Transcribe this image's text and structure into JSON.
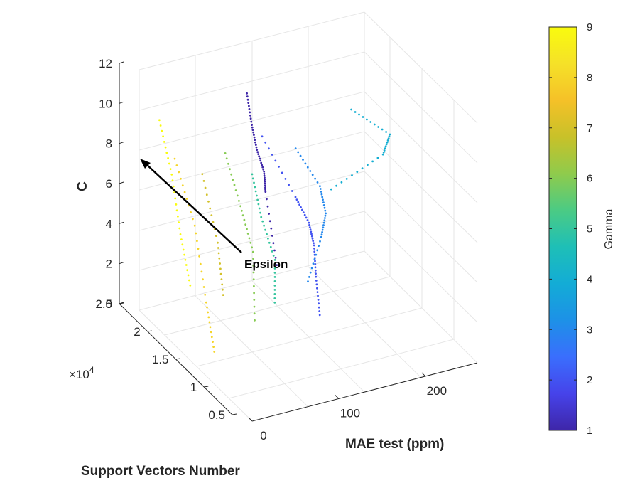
{
  "chart_data": {
    "type": "scatter",
    "title": "",
    "xlabel": "MAE test (ppm)",
    "ylabel": "Support Vectors Number",
    "zlabel": "C",
    "y_exponent_label": "×10",
    "y_exponent_power": "4",
    "x_ticks": [
      "0",
      "100",
      "200"
    ],
    "y_ticks": [
      "0.5",
      "1",
      "1.5",
      "2",
      "2.5"
    ],
    "z_ticks": [
      "0",
      "2",
      "4",
      "6",
      "8",
      "10",
      "12"
    ],
    "xlim": [
      0,
      260
    ],
    "ylim": [
      0.5,
      2.5
    ],
    "zlim": [
      0,
      12
    ],
    "colorbar": {
      "label": "Gamma",
      "ticks": [
        "1",
        "2",
        "3",
        "4",
        "5",
        "6",
        "7",
        "8",
        "9"
      ],
      "range": [
        1,
        9
      ],
      "colormap": [
        "#3e26a8",
        "#4643ea",
        "#3a6efd",
        "#1d91e7",
        "#13acd6",
        "#1ebfb7",
        "#4bcb84",
        "#8fcb4c",
        "#c8c129",
        "#f5c128",
        "#f5e128",
        "#f9fb0e"
      ]
    },
    "annotation": "Epsilon",
    "series": [
      {
        "name": "gamma 1",
        "gamma": 1,
        "points": [
          [
            95,
            2.05,
            11.0
          ],
          [
            100,
            2.04,
            9.4
          ],
          [
            102,
            1.98,
            8.3
          ],
          [
            105,
            1.9,
            7.4
          ],
          [
            110,
            1.95,
            6.2
          ],
          [
            108,
            1.72,
            3.2
          ]
        ]
      },
      {
        "name": "gamma 2",
        "gamma": 2,
        "points": [
          [
            108,
            1.98,
            8.9
          ],
          [
            125,
            1.65,
            6.6
          ],
          [
            132,
            1.52,
            5.6
          ],
          [
            125,
            1.32,
            5.1
          ],
          [
            118,
            1.18,
            4.0
          ],
          [
            112,
            1.02,
            2.6
          ]
        ]
      },
      {
        "name": "gamma 3",
        "gamma": 3,
        "points": [
          [
            135,
            1.8,
            8.5
          ],
          [
            150,
            1.6,
            7.0
          ],
          [
            145,
            1.42,
            6.2
          ],
          [
            132,
            1.3,
            5.5
          ],
          [
            110,
            1.2,
            3.8
          ]
        ]
      },
      {
        "name": "gamma 4",
        "gamma": 4,
        "points": [
          [
            168,
            1.32,
            11.4
          ],
          [
            195,
            1.05,
            10.6
          ],
          [
            185,
            1.02,
            9.8
          ],
          [
            150,
            1.4,
            7.4
          ]
        ]
      },
      {
        "name": "gamma 5",
        "gamma": 5,
        "points": [
          [
            88,
            1.85,
            7.6
          ],
          [
            90,
            1.72,
            5.8
          ],
          [
            85,
            1.4,
            4.6
          ],
          [
            75,
            1.25,
            3.0
          ]
        ]
      },
      {
        "name": "gamma 6",
        "gamma": 6,
        "points": [
          [
            68,
            2.02,
            8.4
          ],
          [
            70,
            1.78,
            6.4
          ],
          [
            65,
            1.48,
            5.0
          ],
          [
            55,
            1.3,
            2.2
          ]
        ]
      },
      {
        "name": "gamma 7",
        "gamma": 7,
        "points": [
          [
            50,
            2.15,
            7.2
          ],
          [
            45,
            1.8,
            4.8
          ],
          [
            35,
            1.55,
            3.0
          ]
        ]
      },
      {
        "name": "gamma 8",
        "gamma": 8,
        "points": [
          [
            28,
            2.3,
            7.8
          ],
          [
            25,
            1.9,
            5.6
          ],
          [
            20,
            1.62,
            2.6
          ],
          [
            15,
            1.4,
            0.8
          ]
        ]
      },
      {
        "name": "gamma 9",
        "gamma": 9,
        "points": [
          [
            20,
            2.45,
            9.4
          ],
          [
            18,
            2.2,
            7.4
          ],
          [
            15,
            2.0,
            5.0
          ],
          [
            10,
            1.75,
            3.2
          ]
        ]
      }
    ]
  }
}
